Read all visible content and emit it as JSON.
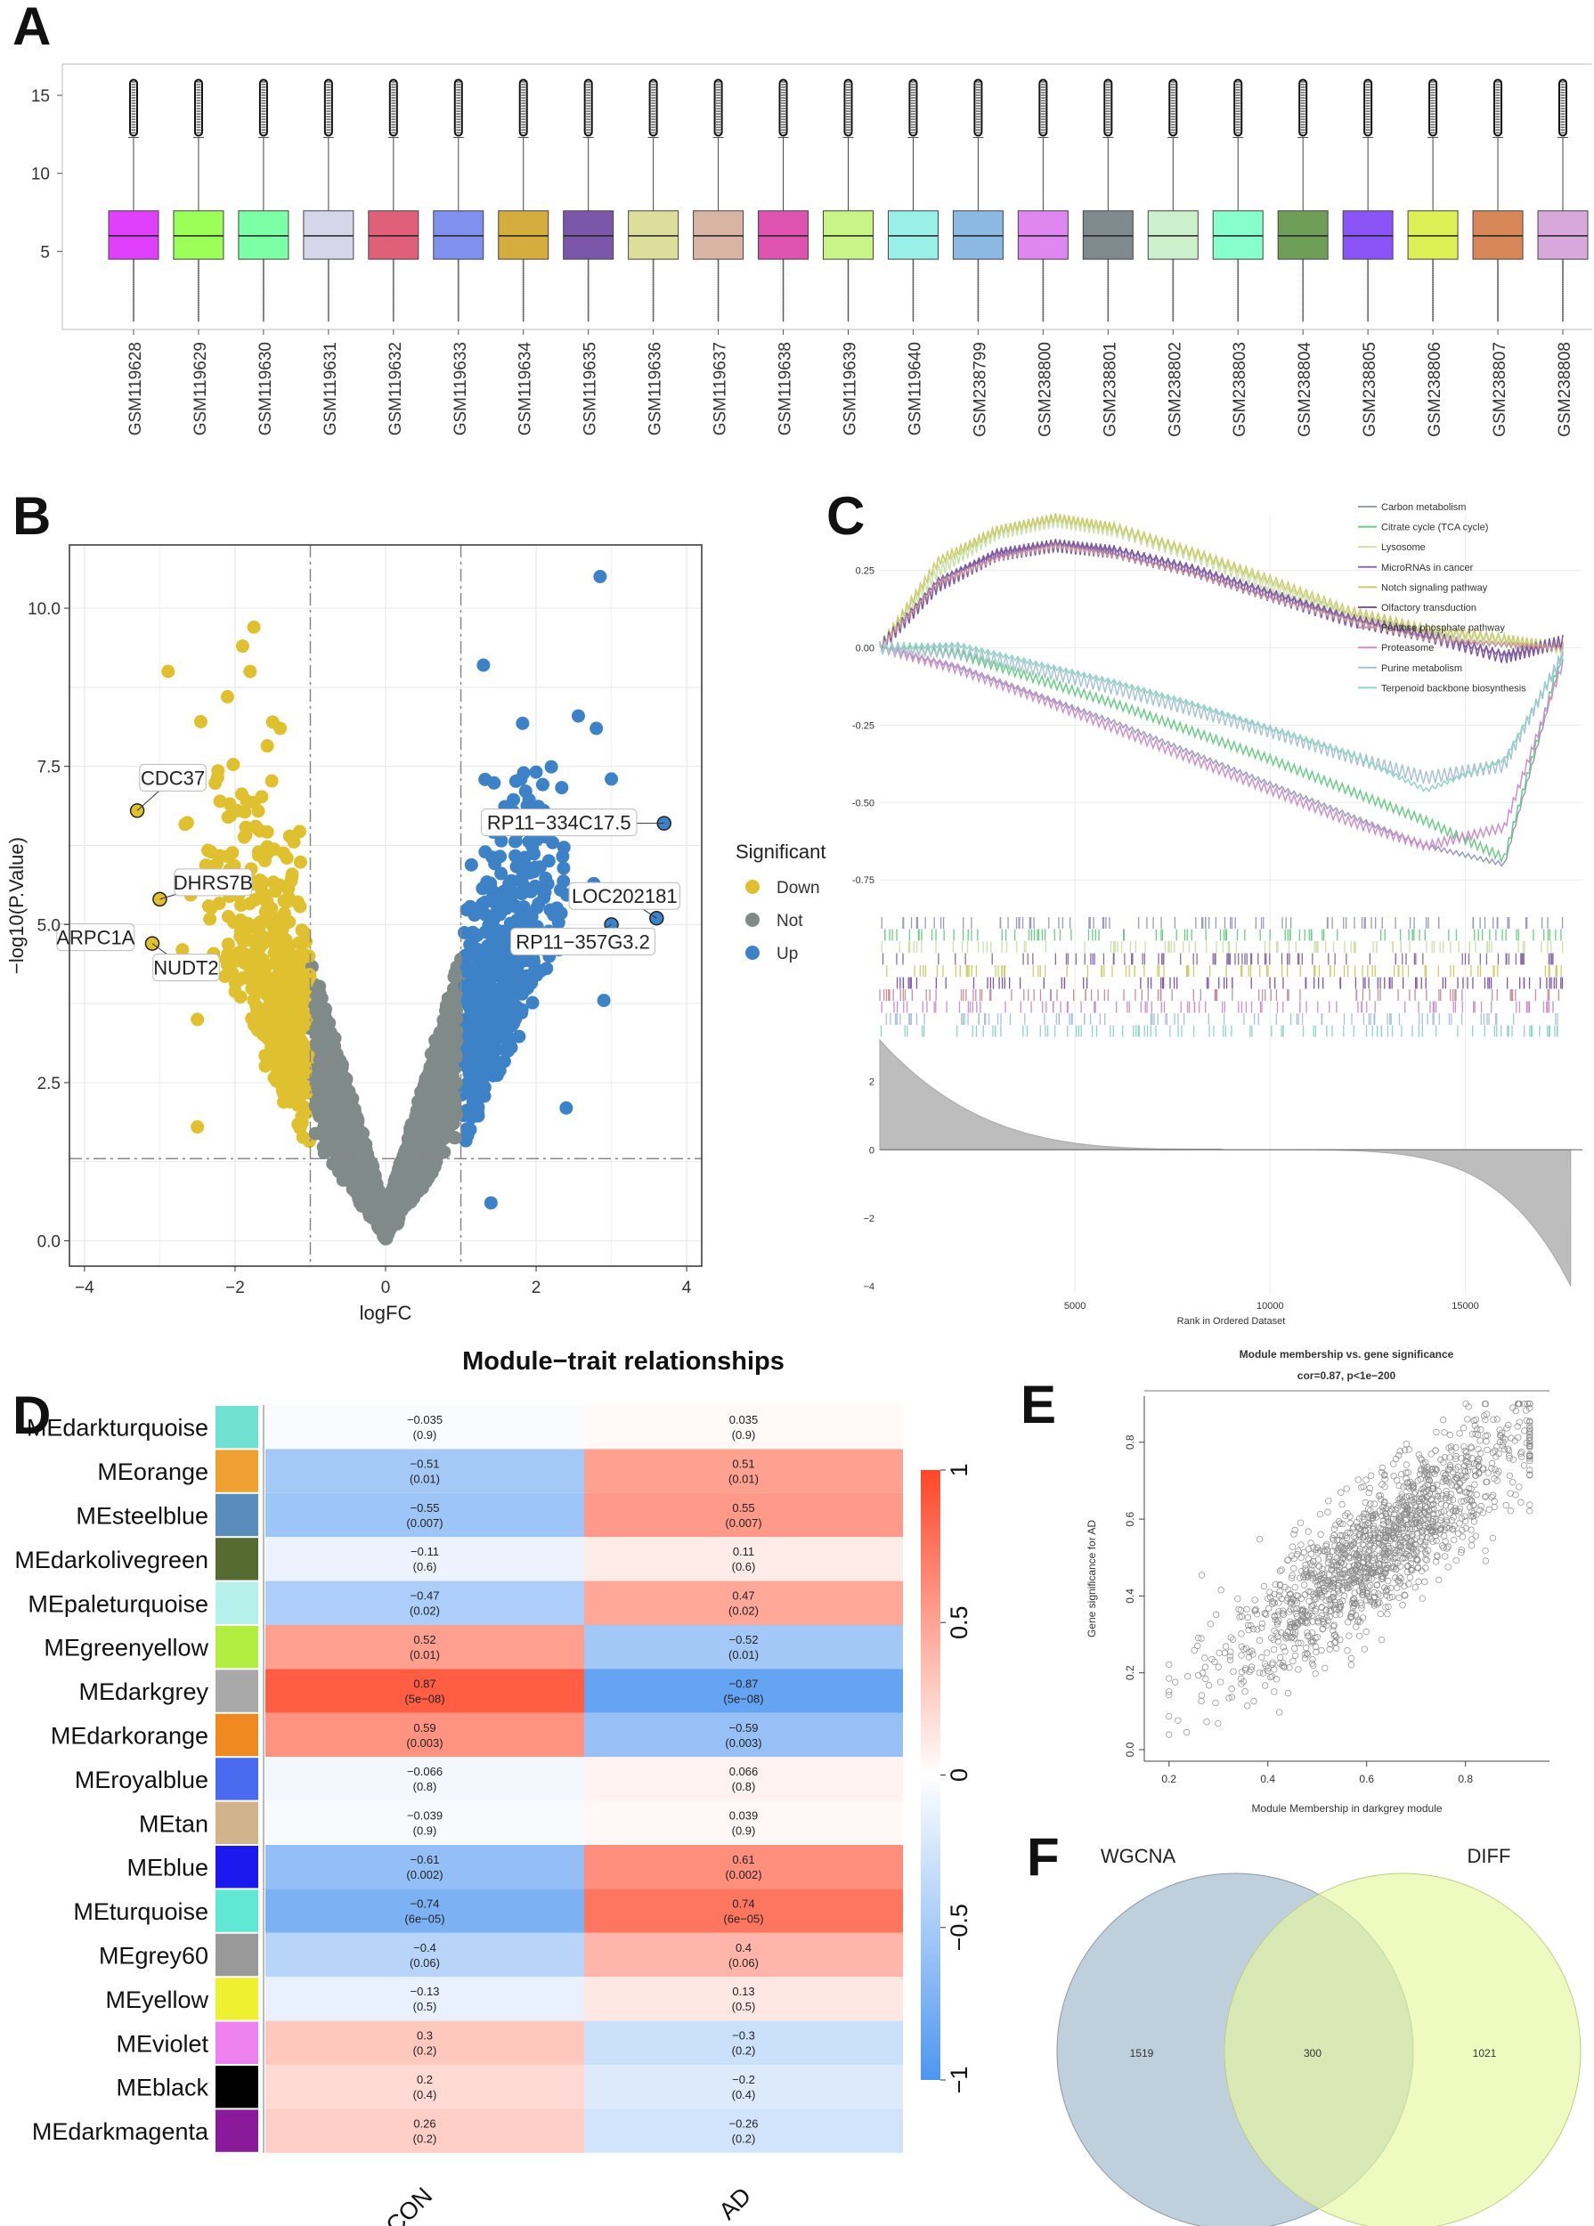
{
  "panels": {
    "A": "A",
    "B": "B",
    "C": "C",
    "D": "D",
    "E": "E",
    "F": "F"
  },
  "chart_data": [
    {
      "id": "A",
      "type": "box",
      "title": "",
      "ylim": [
        0,
        17
      ],
      "yticks": [
        5,
        10,
        15
      ],
      "categories": [
        "GSM119628",
        "GSM119629",
        "GSM119630",
        "GSM119631",
        "GSM119632",
        "GSM119633",
        "GSM119634",
        "GSM119635",
        "GSM119636",
        "GSM119637",
        "GSM119638",
        "GSM119639",
        "GSM119640",
        "GSM238799",
        "GSM238800",
        "GSM238801",
        "GSM238802",
        "GSM238803",
        "GSM238804",
        "GSM238805",
        "GSM238806",
        "GSM238807",
        "GSM238808"
      ],
      "box_colors": [
        "#e040fb",
        "#9cff57",
        "#7dffa5",
        "#d6d6ea",
        "#e0607a",
        "#8090ee",
        "#d4ad3e",
        "#7c56a8",
        "#dede9c",
        "#d8b4a4",
        "#de52b0",
        "#c8f488",
        "#98f0e8",
        "#8cb8e4",
        "#e086f0",
        "#7e8a8e",
        "#ccf0cc",
        "#86ffcc",
        "#6e9e58",
        "#8a54f6",
        "#dcf055",
        "#d88858",
        "#d8a8dc"
      ],
      "q1": 4.5,
      "median": 6.0,
      "q3": 7.6,
      "whisker_low": 0.5,
      "whisker_high": 12.3,
      "outlier_max": 16.0
    },
    {
      "id": "B",
      "type": "scatter",
      "xlabel": "logFC",
      "ylabel": "−log10(P.Value)",
      "xlim": [
        -4.2,
        4.2
      ],
      "ylim": [
        -0.4,
        11
      ],
      "xticks": [
        -4,
        -2,
        0,
        2,
        4
      ],
      "yticks": [
        0.0,
        2.5,
        5.0,
        7.5,
        10.0
      ],
      "thresholds": {
        "logFC": [
          -1,
          1
        ],
        "pvalue_line": 1.3
      },
      "legend_title": "Significant",
      "legend": [
        {
          "label": "Down",
          "color": "#dfc130"
        },
        {
          "label": "Not",
          "color": "#808b89"
        },
        {
          "label": "Up",
          "color": "#3d82c6"
        }
      ],
      "labeled_points": [
        {
          "label": "CDC37",
          "x": -3.3,
          "y": 6.8
        },
        {
          "label": "DHRS7B",
          "x": -3.0,
          "y": 5.4
        },
        {
          "label": "ARPC1A",
          "x": -3.9,
          "y": 4.7
        },
        {
          "label": "NUDT2",
          "x": -3.1,
          "y": 4.7
        },
        {
          "label": "RP11−334C17.5",
          "x": 3.7,
          "y": 6.6
        },
        {
          "label": "LOC202181",
          "x": 3.6,
          "y": 5.1
        },
        {
          "label": "RP11−357G3.2",
          "x": 3.0,
          "y": 5.0
        }
      ],
      "extreme_points": {
        "down": [
          [
            -1.75,
            9.7
          ],
          [
            -1.9,
            9.4
          ],
          [
            -1.8,
            9.0
          ],
          [
            -1.5,
            8.2
          ],
          [
            -1.4,
            8.1
          ],
          [
            -2.1,
            8.6
          ],
          [
            -2.7,
            4.6
          ],
          [
            -2.5,
            3.5
          ],
          [
            -2.5,
            1.8
          ]
        ],
        "up": [
          [
            2.85,
            10.5
          ],
          [
            1.3,
            9.1
          ],
          [
            2.8,
            8.1
          ],
          [
            3.0,
            7.3
          ],
          [
            2.9,
            3.8
          ],
          [
            2.4,
            2.1
          ],
          [
            1.4,
            0.6
          ],
          [
            2.3,
            4.6
          ]
        ]
      }
    },
    {
      "id": "C",
      "type": "line",
      "xlabel": "Rank in Ordered Dataset",
      "xticks": [
        5000,
        10000,
        15000
      ],
      "xlim": [
        0,
        18000
      ],
      "es_yticks": [
        0.25,
        0.0,
        -0.25,
        -0.5,
        -0.75
      ],
      "es_ylim": [
        -0.83,
        0.43
      ],
      "rank_yticks": [
        2,
        0,
        -2,
        -4
      ],
      "rank_ylim": [
        -4.2,
        3.3
      ],
      "series": [
        {
          "name": "Carbon metabolism",
          "color": "#9a9ac0",
          "x": [
            0,
            2000,
            4000,
            6000,
            8000,
            10000,
            12000,
            14000,
            16000,
            17500
          ],
          "values": [
            0,
            -0.06,
            -0.15,
            -0.24,
            -0.34,
            -0.44,
            -0.54,
            -0.64,
            -0.7,
            -0.02
          ]
        },
        {
          "name": "Citrate cycle (TCA cycle)",
          "color": "#6ccc88",
          "x": [
            0,
            2000,
            4000,
            6000,
            8000,
            10000,
            12000,
            14000,
            16000,
            17500
          ],
          "values": [
            0,
            -0.02,
            -0.1,
            -0.18,
            -0.27,
            -0.36,
            -0.46,
            -0.56,
            -0.68,
            0.0
          ]
        },
        {
          "name": "Lysosome",
          "color": "#cce0a8",
          "x": [
            0,
            1500,
            3000,
            4500,
            6000,
            8000,
            10000,
            12000,
            14000,
            16000,
            17500
          ],
          "values": [
            0,
            0.25,
            0.37,
            0.41,
            0.38,
            0.3,
            0.2,
            0.1,
            0.05,
            0.02,
            0.0
          ]
        },
        {
          "name": "MicroRNAs in cancer",
          "color": "#886ea8",
          "x": [
            0,
            1500,
            3000,
            4500,
            6000,
            8000,
            10000,
            12000,
            14000,
            16000,
            17500
          ],
          "values": [
            0,
            0.22,
            0.31,
            0.34,
            0.32,
            0.26,
            0.18,
            0.1,
            0.04,
            -0.02,
            0.01
          ]
        },
        {
          "name": "Notch signaling pathway",
          "color": "#cccc6c",
          "x": [
            0,
            1500,
            3000,
            4500,
            6000,
            8000,
            10000,
            12000,
            14000,
            16000,
            17500
          ],
          "values": [
            0,
            0.28,
            0.38,
            0.42,
            0.39,
            0.31,
            0.22,
            0.12,
            0.06,
            0.03,
            0.0
          ]
        },
        {
          "name": "Olfactory transduction",
          "color": "#7e58a4",
          "x": [
            0,
            1500,
            3000,
            4500,
            6000,
            8000,
            10000,
            12000,
            14000,
            16000,
            17500
          ],
          "values": [
            0,
            0.2,
            0.3,
            0.33,
            0.31,
            0.25,
            0.17,
            0.09,
            0.04,
            -0.03,
            0.02
          ]
        },
        {
          "name": "Pentose phosphate pathway",
          "color": "#c8909a",
          "x": [
            0,
            1500,
            3000,
            4500,
            6000,
            8000,
            10000,
            12000,
            14000,
            16000,
            17500
          ],
          "values": [
            0,
            0.21,
            0.29,
            0.33,
            0.3,
            0.24,
            0.16,
            0.09,
            0.03,
            0.01,
            0.0
          ]
        },
        {
          "name": "Proteasome",
          "color": "#cc90cc",
          "x": [
            0,
            2000,
            4000,
            6000,
            8000,
            10000,
            12000,
            14000,
            16000,
            17500
          ],
          "values": [
            0,
            -0.07,
            -0.16,
            -0.26,
            -0.36,
            -0.46,
            -0.56,
            -0.64,
            -0.58,
            -0.05
          ]
        },
        {
          "name": "Purine metabolism",
          "color": "#a8c4d4",
          "x": [
            0,
            2000,
            4000,
            6000,
            8000,
            10000,
            12000,
            14000,
            16000,
            17500
          ],
          "values": [
            0,
            -0.01,
            -0.07,
            -0.13,
            -0.2,
            -0.27,
            -0.35,
            -0.42,
            -0.38,
            -0.02
          ]
        },
        {
          "name": "Terpenoid backbone biosynthesis",
          "color": "#90d4c4",
          "x": [
            0,
            2000,
            4000,
            6000,
            8000,
            10000,
            12000,
            14000,
            16000,
            17500
          ],
          "values": [
            0,
            0.01,
            -0.05,
            -0.11,
            -0.18,
            -0.26,
            -0.34,
            -0.46,
            -0.36,
            -0.03
          ]
        }
      ]
    },
    {
      "id": "D",
      "type": "heatmap",
      "title": "Module−trait relationships",
      "columns": [
        "CON",
        "AD"
      ],
      "colorbar_ticks": [
        "1",
        "0.5",
        "0",
        "−0.5",
        "−1"
      ],
      "rows": [
        {
          "name": "MEdarkturquoise",
          "color": "#6fe0d2",
          "con": -0.035,
          "con_p": "(0.9)",
          "con_t": "−0.035",
          "ad": 0.035,
          "ad_p": "(0.9)",
          "ad_t": "0.035"
        },
        {
          "name": "MEorange",
          "color": "#eea030",
          "con": -0.51,
          "con_p": "(0.01)",
          "con_t": "−0.51",
          "ad": 0.51,
          "ad_p": "(0.01)",
          "ad_t": "0.51"
        },
        {
          "name": "MEsteelblue",
          "color": "#5a8cbc",
          "con": -0.55,
          "con_p": "(0.007)",
          "con_t": "−0.55",
          "ad": 0.55,
          "ad_p": "(0.007)",
          "ad_t": "0.55"
        },
        {
          "name": "MEdarkolivegreen",
          "color": "#556b2f",
          "con": -0.11,
          "con_p": "(0.6)",
          "con_t": "−0.11",
          "ad": 0.11,
          "ad_p": "(0.6)",
          "ad_t": "0.11"
        },
        {
          "name": "MEpaleturquoise",
          "color": "#b6f0ea",
          "con": -0.47,
          "con_p": "(0.02)",
          "con_t": "−0.47",
          "ad": 0.47,
          "ad_p": "(0.02)",
          "ad_t": "0.47"
        },
        {
          "name": "MEgreenyellow",
          "color": "#b2ee40",
          "con": 0.52,
          "con_p": "(0.01)",
          "con_t": "0.52",
          "ad": -0.52,
          "ad_p": "(0.01)",
          "ad_t": "−0.52"
        },
        {
          "name": "MEdarkgrey",
          "color": "#a9a9a9",
          "con": 0.87,
          "con_p": "(5e−08)",
          "con_t": "0.87",
          "ad": -0.87,
          "ad_p": "(5e−08)",
          "ad_t": "−0.87"
        },
        {
          "name": "MEdarkorange",
          "color": "#f08a20",
          "con": 0.59,
          "con_p": "(0.003)",
          "con_t": "0.59",
          "ad": -0.59,
          "ad_p": "(0.003)",
          "ad_t": "−0.59"
        },
        {
          "name": "MEroyalblue",
          "color": "#4a6af0",
          "con": -0.066,
          "con_p": "(0.8)",
          "con_t": "−0.066",
          "ad": 0.066,
          "ad_p": "(0.8)",
          "ad_t": "0.066"
        },
        {
          "name": "MEtan",
          "color": "#d2b48c",
          "con": -0.039,
          "con_p": "(0.9)",
          "con_t": "−0.039",
          "ad": 0.039,
          "ad_p": "(0.9)",
          "ad_t": "0.039"
        },
        {
          "name": "MEblue",
          "color": "#1a1aee",
          "con": -0.61,
          "con_p": "(0.002)",
          "con_t": "−0.61",
          "ad": 0.61,
          "ad_p": "(0.002)",
          "ad_t": "0.61"
        },
        {
          "name": "MEturquoise",
          "color": "#60e8d4",
          "con": -0.74,
          "con_p": "(6e−05)",
          "con_t": "−0.74",
          "ad": 0.74,
          "ad_p": "(6e−05)",
          "ad_t": "0.74"
        },
        {
          "name": "MEgrey60",
          "color": "#999999",
          "con": -0.4,
          "con_p": "(0.06)",
          "con_t": "−0.4",
          "ad": 0.4,
          "ad_p": "(0.06)",
          "ad_t": "0.4"
        },
        {
          "name": "MEyellow",
          "color": "#eef030",
          "con": -0.13,
          "con_p": "(0.5)",
          "con_t": "−0.13",
          "ad": 0.13,
          "ad_p": "(0.5)",
          "ad_t": "0.13"
        },
        {
          "name": "MEviolet",
          "color": "#ee82ee",
          "con": 0.3,
          "con_p": "(0.2)",
          "con_t": "0.3",
          "ad": -0.3,
          "ad_p": "(0.2)",
          "ad_t": "−0.3"
        },
        {
          "name": "MEblack",
          "color": "#000000",
          "con": 0.2,
          "con_p": "(0.4)",
          "con_t": "0.2",
          "ad": -0.2,
          "ad_p": "(0.4)",
          "ad_t": "−0.2"
        },
        {
          "name": "MEdarkmagenta",
          "color": "#8b1a9a",
          "con": 0.26,
          "con_p": "(0.2)",
          "con_t": "0.26",
          "ad": -0.26,
          "ad_p": "(0.2)",
          "ad_t": "−0.26"
        }
      ]
    },
    {
      "id": "E",
      "type": "scatter",
      "title": "Module membership vs. gene significance",
      "subtitle": "cor=0.87, p<1e−200",
      "xlabel": "Module Membership in darkgrey module",
      "ylabel": "Gene significance for  AD",
      "xlim": [
        0.15,
        0.97
      ],
      "ylim": [
        -0.03,
        0.92
      ],
      "xticks": [
        "0.2",
        "0.4",
        "0.6",
        "0.8"
      ],
      "yticks": [
        "0.0",
        "0.2",
        "0.4",
        "0.6",
        "0.8"
      ],
      "correlation": 0.87
    },
    {
      "id": "F",
      "type": "venn",
      "sets": [
        {
          "name": "WGCNA",
          "only": "1519",
          "color": "#b8cad8"
        },
        {
          "name": "DIFF",
          "only": "1021",
          "color": "#e6f8a0"
        }
      ],
      "intersection": "300"
    }
  ]
}
